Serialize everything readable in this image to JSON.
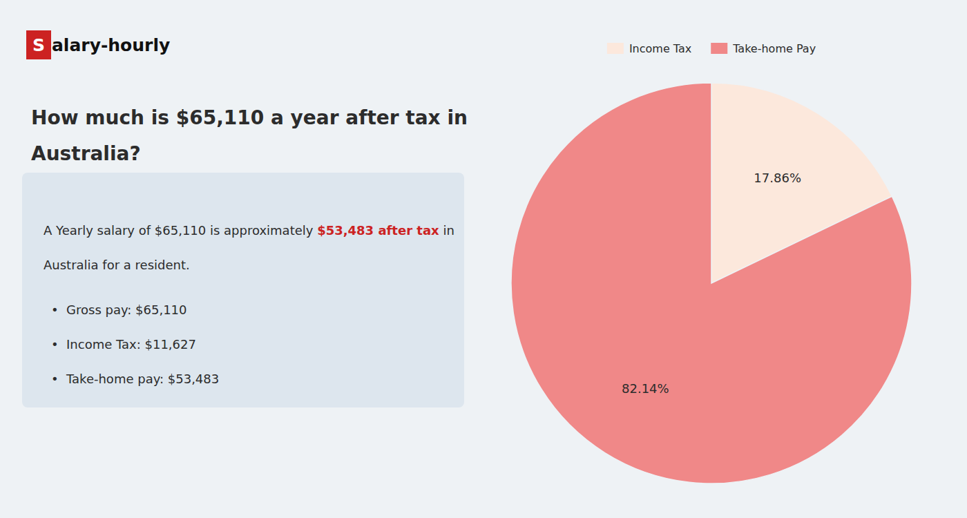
{
  "chart_data": {
    "type": "pie",
    "title": [
      "How much is $65,110 a year after tax in",
      "Australia?"
    ],
    "categories": [
      "Income Tax",
      "Take-home Pay"
    ],
    "values": [
      17.86,
      82.14
    ],
    "value_labels": [
      "17.86%",
      "82.14%"
    ],
    "colors": [
      "#fce8dc",
      "#f08888"
    ],
    "data_labels": true,
    "legend": "top",
    "annotations": [
      {
        "text": "S",
        "color": "#cc2222"
      },
      {
        "text": "alary-hourly"
      },
      {
        "text": "A Yearly salary of $65,110 is approximately "
      },
      {
        "text": "$53,483 after tax",
        "color": "#cc2222"
      },
      {
        "text": " in"
      },
      {
        "text": "Australia for a resident."
      },
      {
        "text": "•  Gross pay: $65,110"
      },
      {
        "text": "•  Income Tax: $11,627"
      },
      {
        "text": "•  Take-home pay: $53,483"
      }
    ]
  }
}
